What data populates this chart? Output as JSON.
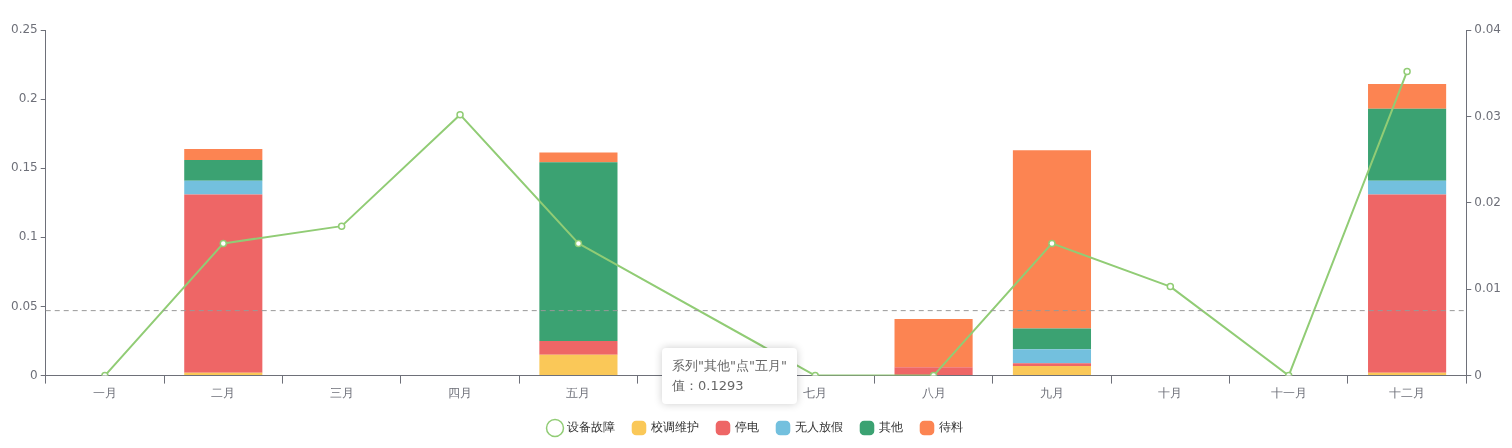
{
  "chart_data": {
    "type": "bar",
    "stacked": true,
    "categories": [
      "一月",
      "二月",
      "三月",
      "四月",
      "五月",
      null,
      "七月",
      "八月",
      "九月",
      "十月",
      "十一月",
      "十二月"
    ],
    "series": [
      {
        "name": "设备故障",
        "type": "line",
        "axis": "y2",
        "color": "#91cc75",
        "marker": "circle",
        "values": [
          0,
          0.0153,
          0.0173,
          0.0302,
          0.0153,
          null,
          0,
          0,
          0.0153,
          0.0103,
          0,
          0.0352
        ]
      },
      {
        "name": "校调维护",
        "color": "#fac858",
        "values": [
          0,
          0.002,
          0,
          0,
          0.015,
          0,
          0,
          0,
          0.007,
          0,
          0,
          0.002
        ]
      },
      {
        "name": "停电",
        "color": "#ee6666",
        "values": [
          0,
          0.129,
          0,
          0,
          0.01,
          0,
          0,
          0.006,
          0.002,
          0,
          0,
          0.129
        ]
      },
      {
        "name": "无人放假",
        "color": "#73c0de",
        "values": [
          0,
          0.01,
          0,
          0,
          0,
          0,
          0,
          0,
          0.01,
          0,
          0,
          0.01
        ]
      },
      {
        "name": "其他",
        "color": "#3ba272",
        "values": [
          0,
          0.015,
          0,
          0,
          0.1293,
          0,
          0,
          0,
          0.015,
          0,
          0,
          0.052
        ]
      },
      {
        "name": "待料",
        "color": "#fc8452",
        "values": [
          0,
          0.008,
          0,
          0,
          0.007,
          0,
          0,
          0.035,
          0.129,
          0,
          0,
          0.018
        ]
      }
    ],
    "ylim": [
      0,
      0.25
    ],
    "yticks": [
      0,
      0.05,
      0.1,
      0.15,
      0.2,
      0.25
    ],
    "y2lim": [
      0,
      0.04
    ],
    "y2ticks": [
      0,
      0.01,
      0.02,
      0.03,
      0.04
    ],
    "ref_lines": [
      {
        "axis": "y",
        "value": 0.047,
        "color": "#999999",
        "line_style": "dashed"
      }
    ],
    "annotations": [
      "系列\"其他\"点\"五月\"",
      "值：0.1293"
    ],
    "grid": false,
    "legend": "bottom"
  }
}
